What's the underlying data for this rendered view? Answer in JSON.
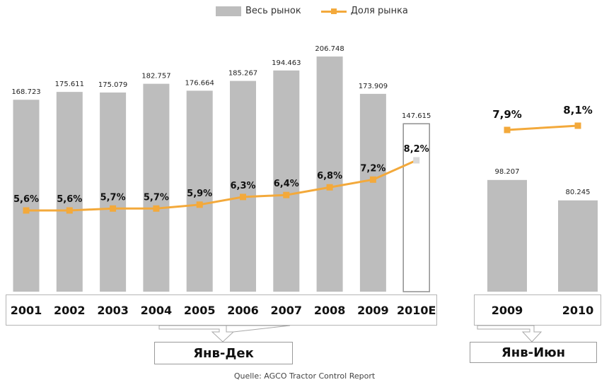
{
  "legend": {
    "bar_label": "Весь рынок",
    "line_label": "Доля рынка"
  },
  "colors": {
    "bar": "#bdbdbd",
    "bar_estimate_fill": "#ffffff",
    "line": "#f3a93b"
  },
  "source_text": "Quelle: AGCO Tractor Control Report",
  "chart_data": [
    {
      "type": "bar",
      "period_label": "Янв-Дек",
      "categories": [
        "2001",
        "2002",
        "2003",
        "2004",
        "2005",
        "2006",
        "2007",
        "2008",
        "2009",
        "2010E"
      ],
      "series": [
        {
          "name": "Весь рынок",
          "values": [
            168723,
            175611,
            175079,
            182757,
            176664,
            185267,
            194463,
            206748,
            173909,
            147615
          ],
          "labels": [
            "168.723",
            "175.611",
            "175.079",
            "182.757",
            "176.664",
            "185.267",
            "194.463",
            "206.748",
            "173.909",
            "147.615"
          ]
        },
        {
          "name": "Доля рынка",
          "type": "line",
          "values": [
            5.6,
            5.6,
            5.7,
            5.7,
            5.9,
            6.3,
            6.4,
            6.8,
            7.2,
            8.2
          ],
          "labels": [
            "5,6%",
            "5,6%",
            "5,7%",
            "5,7%",
            "5,9%",
            "6,3%",
            "6,4%",
            "6,8%",
            "7,2%",
            "8,2%"
          ]
        }
      ],
      "estimate_category": "2010E"
    },
    {
      "type": "bar",
      "period_label": "Янв-Июн",
      "categories": [
        "2009",
        "2010"
      ],
      "series": [
        {
          "name": "Весь рынок",
          "values": [
            98207,
            80245
          ],
          "labels": [
            "98.207",
            "80.245"
          ]
        },
        {
          "name": "Доля рынка",
          "type": "line",
          "values": [
            7.9,
            8.1
          ],
          "labels": [
            "7,9%",
            "8,1%"
          ]
        }
      ]
    }
  ]
}
